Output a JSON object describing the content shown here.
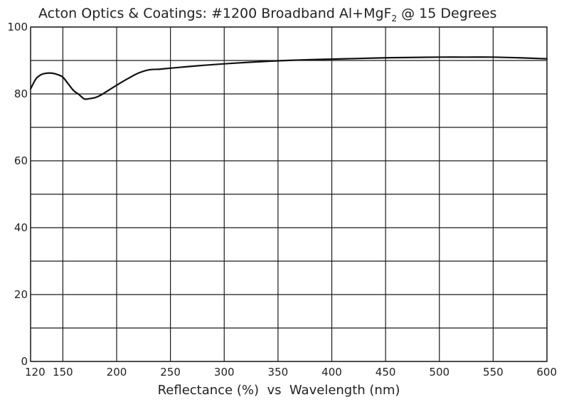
{
  "chart_data": {
    "type": "line",
    "title": {
      "main": "Acton Optics & Coatings: #1200 Broadband Al+MgF",
      "subscript": "2",
      "tail": " @ 15 Degrees"
    },
    "xlabel": "Reflectance (%)  vs  Wavelength (nm)",
    "ylabel": "",
    "xlim": [
      120,
      600
    ],
    "ylim": [
      0,
      100
    ],
    "x_ticks": [
      120,
      150,
      200,
      250,
      300,
      350,
      400,
      450,
      500,
      550,
      600
    ],
    "y_ticks": [
      0,
      20,
      40,
      60,
      80,
      100
    ],
    "y_gridlines": [
      0,
      10,
      20,
      30,
      40,
      50,
      60,
      70,
      80,
      90,
      100
    ],
    "grid": true,
    "series": [
      {
        "x": [
          120,
          125,
          130,
          135,
          140,
          145,
          150,
          155,
          160,
          165,
          170,
          175,
          180,
          185,
          190,
          200,
          210,
          220,
          230,
          240,
          250,
          275,
          300,
          325,
          350,
          375,
          400,
          425,
          450,
          475,
          500,
          525,
          550,
          575,
          600
        ],
        "values": [
          81.5,
          84.5,
          85.8,
          86.2,
          86.2,
          85.8,
          85.0,
          83.0,
          81.0,
          79.8,
          78.5,
          78.6,
          78.9,
          79.6,
          80.6,
          82.6,
          84.5,
          86.2,
          87.2,
          87.4,
          87.7,
          88.4,
          89.0,
          89.5,
          89.9,
          90.2,
          90.4,
          90.6,
          90.8,
          90.9,
          91.0,
          91.0,
          91.0,
          90.8,
          90.5
        ]
      }
    ]
  }
}
